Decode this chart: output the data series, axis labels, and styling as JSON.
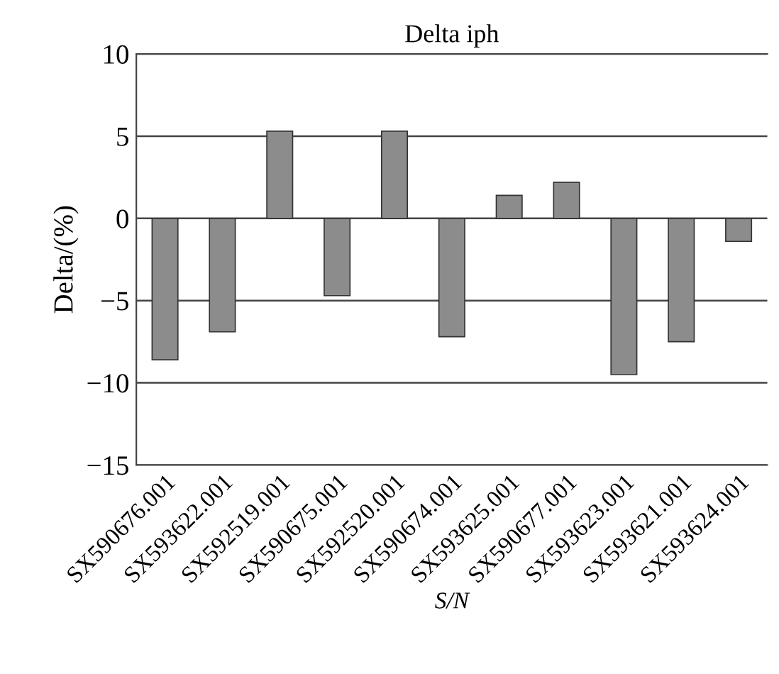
{
  "chart_data": {
    "type": "bar",
    "title": "Delta iph",
    "xlabel": "S/N",
    "ylabel": "Delta/(%)",
    "categories": [
      "SX590676.001",
      "SX593622.001",
      "SX592519.001",
      "SX590675.001",
      "SX592520.001",
      "SX590674.001",
      "SX593625.001",
      "SX590677.001",
      "SX593623.001",
      "SX593621.001",
      "SX593624.001"
    ],
    "values": [
      -8.6,
      -6.9,
      5.3,
      -4.7,
      5.3,
      -7.2,
      1.4,
      2.2,
      -9.5,
      -7.5,
      -1.4
    ],
    "color": "#8c8c8c",
    "ylim": [
      -15,
      10
    ],
    "yticks": [
      {
        "value": -15,
        "label": "−15"
      },
      {
        "value": -10,
        "label": "−10"
      },
      {
        "value": -5,
        "label": "−5"
      },
      0,
      5,
      10
    ],
    "grid": "y",
    "legend": false
  }
}
